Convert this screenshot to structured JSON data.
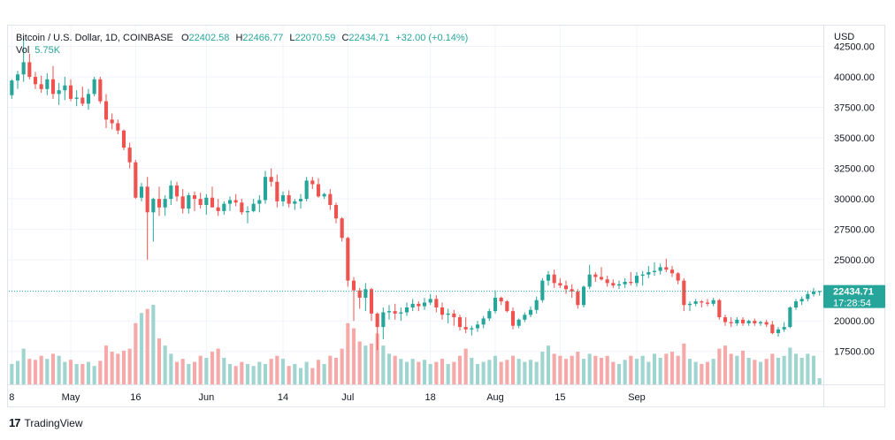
{
  "legend": {
    "symbol": "Bitcoin / U.S. Dollar, 1D, COINBASE",
    "o_label": "O",
    "o_value": "22402.58",
    "h_label": "H",
    "h_value": "22466.77",
    "l_label": "L",
    "l_value": "22070.59",
    "c_label": "C",
    "c_value": "22434.71",
    "change": "+32.00 (+0.14%)",
    "vol_label": "Vol",
    "vol_value": "5.75K"
  },
  "footer": {
    "brand": "TradingView",
    "mark": "17"
  },
  "colors": {
    "up": "#26a69a",
    "down": "#ef5350",
    "up_vol": "#9fd4cf",
    "down_vol": "#f5a9a8",
    "grid": "#f0f3fa",
    "axis_text": "#131722"
  },
  "chart_data": {
    "type": "candlestick",
    "currency": "USD",
    "last_price": "22434.71",
    "countdown": "17:28:54",
    "y_ticks": [
      "42500.00",
      "40000.00",
      "37500.00",
      "35000.00",
      "32500.00",
      "30000.00",
      "27500.00",
      "25000.00",
      "20000.00",
      "17500.00"
    ],
    "y_range": [
      14800,
      44200
    ],
    "x_ticks": [
      {
        "label": "8",
        "index": 0
      },
      {
        "label": "May",
        "index": 10
      },
      {
        "label": "16",
        "index": 21
      },
      {
        "label": "Jun",
        "index": 33
      },
      {
        "label": "14",
        "index": 46
      },
      {
        "label": "Jul",
        "index": 57
      },
      {
        "label": "18",
        "index": 71
      },
      {
        "label": "Aug",
        "index": 82
      },
      {
        "label": "15",
        "index": 93
      },
      {
        "label": "Sep",
        "index": 106
      }
    ],
    "candles": [
      [
        38500,
        39800,
        38200,
        39700,
        20
      ],
      [
        39700,
        40500,
        39000,
        40200,
        23
      ],
      [
        40200,
        43200,
        39600,
        41200,
        35
      ],
      [
        41200,
        41900,
        39800,
        40000,
        25
      ],
      [
        40000,
        40400,
        39000,
        39400,
        24
      ],
      [
        39400,
        40100,
        38700,
        39000,
        28
      ],
      [
        39000,
        40300,
        38500,
        39800,
        25
      ],
      [
        39800,
        40900,
        38200,
        38600,
        30
      ],
      [
        38600,
        39500,
        37700,
        38900,
        28
      ],
      [
        38900,
        40000,
        38100,
        39300,
        22
      ],
      [
        39300,
        39800,
        38000,
        38200,
        24
      ],
      [
        38200,
        38900,
        37600,
        38300,
        20
      ],
      [
        38300,
        39200,
        37600,
        37800,
        20
      ],
      [
        37800,
        39000,
        37300,
        38600,
        22
      ],
      [
        38600,
        40000,
        38400,
        39800,
        18
      ],
      [
        39800,
        40000,
        37800,
        38000,
        23
      ],
      [
        38000,
        38600,
        35800,
        36500,
        38
      ],
      [
        36500,
        37000,
        35700,
        36200,
        32
      ],
      [
        36200,
        36500,
        35300,
        35600,
        30
      ],
      [
        35600,
        35700,
        34000,
        34200,
        33
      ],
      [
        34200,
        34600,
        32500,
        33000,
        35
      ],
      [
        33000,
        33200,
        30000,
        30100,
        60
      ],
      [
        30100,
        31300,
        29800,
        31000,
        70
      ],
      [
        31000,
        31800,
        25000,
        28900,
        74
      ],
      [
        28900,
        30100,
        26500,
        30000,
        78
      ],
      [
        30000,
        31000,
        28600,
        29300,
        45
      ],
      [
        29300,
        30300,
        28600,
        30000,
        38
      ],
      [
        30000,
        31500,
        29500,
        31100,
        30
      ],
      [
        31100,
        31400,
        29800,
        30200,
        22
      ],
      [
        30200,
        30800,
        28800,
        29200,
        25
      ],
      [
        29200,
        30500,
        28800,
        30300,
        20
      ],
      [
        30300,
        30600,
        29000,
        30000,
        22
      ],
      [
        30000,
        30500,
        29200,
        29500,
        28
      ],
      [
        29500,
        30400,
        28700,
        30100,
        26
      ],
      [
        30100,
        31000,
        29400,
        29300,
        32
      ],
      [
        29300,
        30000,
        28600,
        29000,
        35
      ],
      [
        29000,
        29800,
        28700,
        29600,
        26
      ],
      [
        29600,
        30200,
        29000,
        29900,
        20
      ],
      [
        29900,
        30400,
        29400,
        29700,
        18
      ],
      [
        29700,
        30000,
        28700,
        28900,
        22
      ],
      [
        28900,
        29400,
        28000,
        29000,
        20
      ],
      [
        29000,
        30000,
        28900,
        29600,
        18
      ],
      [
        29600,
        30300,
        28900,
        29900,
        22
      ],
      [
        29900,
        32300,
        29600,
        31800,
        20
      ],
      [
        31800,
        32500,
        31000,
        31400,
        25
      ],
      [
        31400,
        32000,
        29300,
        29800,
        28
      ],
      [
        29800,
        30600,
        29400,
        30300,
        25
      ],
      [
        30300,
        30700,
        29300,
        29600,
        18
      ],
      [
        29600,
        30000,
        29100,
        29800,
        20
      ],
      [
        29800,
        30400,
        29200,
        30000,
        16
      ],
      [
        30000,
        31800,
        29800,
        31500,
        22
      ],
      [
        31500,
        31800,
        30800,
        31200,
        16
      ],
      [
        31200,
        31700,
        30100,
        30200,
        24
      ],
      [
        30200,
        30500,
        30000,
        30400,
        20
      ],
      [
        30400,
        30800,
        29100,
        29500,
        28
      ],
      [
        29500,
        29700,
        28000,
        28400,
        26
      ],
      [
        28400,
        28500,
        26500,
        26800,
        35
      ],
      [
        26800,
        26900,
        22800,
        23300,
        60
      ],
      [
        23300,
        23600,
        20000,
        22500,
        55
      ],
      [
        22500,
        22700,
        21000,
        21900,
        42
      ],
      [
        21900,
        23100,
        20800,
        22600,
        38
      ],
      [
        22600,
        22700,
        20000,
        20600,
        40
      ],
      [
        20600,
        20700,
        17600,
        19500,
        50
      ],
      [
        19500,
        21100,
        18500,
        20700,
        38
      ],
      [
        20700,
        21300,
        20100,
        20800,
        30
      ],
      [
        20800,
        21400,
        20100,
        20600,
        28
      ],
      [
        20600,
        21100,
        20000,
        20700,
        25
      ],
      [
        20700,
        21500,
        20400,
        21100,
        22
      ],
      [
        21100,
        21800,
        20800,
        21400,
        25
      ],
      [
        21400,
        21600,
        20800,
        21200,
        22
      ],
      [
        21200,
        21900,
        20900,
        21500,
        24
      ],
      [
        21500,
        22200,
        21300,
        21800,
        20
      ],
      [
        21800,
        22100,
        20700,
        21100,
        22
      ],
      [
        21100,
        21500,
        20100,
        20500,
        25
      ],
      [
        20500,
        21000,
        19800,
        20600,
        20
      ],
      [
        20600,
        20900,
        19600,
        20300,
        22
      ],
      [
        20300,
        20500,
        19200,
        19500,
        28
      ],
      [
        19500,
        20300,
        19000,
        19300,
        35
      ],
      [
        19300,
        19600,
        18800,
        19400,
        26
      ],
      [
        19400,
        20000,
        19100,
        19700,
        20
      ],
      [
        19700,
        20400,
        19400,
        20200,
        22
      ],
      [
        20200,
        21000,
        20000,
        20800,
        24
      ],
      [
        20800,
        22500,
        20600,
        21900,
        28
      ],
      [
        21900,
        22000,
        21300,
        21600,
        22
      ],
      [
        21600,
        21700,
        20700,
        20800,
        24
      ],
      [
        20800,
        21100,
        19300,
        19600,
        28
      ],
      [
        19600,
        20200,
        19400,
        20100,
        25
      ],
      [
        20100,
        20700,
        19900,
        20500,
        22
      ],
      [
        20500,
        21200,
        20300,
        20900,
        24
      ],
      [
        20900,
        22000,
        20600,
        21700,
        22
      ],
      [
        21700,
        23500,
        21500,
        23300,
        32
      ],
      [
        23300,
        24100,
        22900,
        23800,
        38
      ],
      [
        23800,
        24200,
        22700,
        23100,
        30
      ],
      [
        23100,
        23500,
        22700,
        22900,
        28
      ],
      [
        22900,
        23300,
        22200,
        22600,
        25
      ],
      [
        22600,
        23000,
        21900,
        22400,
        28
      ],
      [
        22400,
        22600,
        21000,
        21300,
        32
      ],
      [
        21300,
        22900,
        21100,
        22800,
        25
      ],
      [
        22800,
        24600,
        22600,
        23800,
        30
      ],
      [
        23800,
        24000,
        23200,
        23600,
        28
      ],
      [
        23600,
        24400,
        23300,
        23400,
        26
      ],
      [
        23400,
        23700,
        22800,
        23100,
        28
      ],
      [
        23100,
        23400,
        22700,
        22900,
        22
      ],
      [
        22900,
        23300,
        22600,
        23000,
        20
      ],
      [
        23000,
        23500,
        22700,
        23200,
        24
      ],
      [
        23200,
        24000,
        22900,
        23100,
        28
      ],
      [
        23100,
        24000,
        22800,
        23700,
        25
      ],
      [
        23700,
        24100,
        22900,
        23800,
        28
      ],
      [
        23800,
        24500,
        23500,
        24000,
        22
      ],
      [
        24000,
        24800,
        23700,
        24100,
        30
      ],
      [
        24100,
        24700,
        23800,
        24400,
        26
      ],
      [
        24400,
        25100,
        24000,
        24200,
        30
      ],
      [
        24200,
        24500,
        23600,
        23900,
        32
      ],
      [
        23900,
        24000,
        23000,
        23300,
        28
      ],
      [
        23300,
        23500,
        20800,
        21300,
        40
      ],
      [
        21300,
        21600,
        20800,
        21400,
        25
      ],
      [
        21400,
        21800,
        21200,
        21600,
        22
      ],
      [
        21600,
        21700,
        21100,
        21500,
        20
      ],
      [
        21500,
        21800,
        21200,
        21400,
        22
      ],
      [
        21400,
        21900,
        21200,
        21700,
        25
      ],
      [
        21700,
        21800,
        20100,
        20300,
        35
      ],
      [
        20300,
        20500,
        19600,
        19900,
        38
      ],
      [
        19900,
        20300,
        19500,
        19800,
        30
      ],
      [
        19800,
        20300,
        19600,
        20100,
        28
      ],
      [
        20100,
        20300,
        19600,
        19800,
        33
      ],
      [
        19800,
        20100,
        19600,
        20000,
        26
      ],
      [
        20000,
        20200,
        19600,
        19800,
        24
      ],
      [
        19800,
        20000,
        19600,
        19900,
        22
      ],
      [
        19900,
        20100,
        19500,
        19700,
        25
      ],
      [
        19700,
        20000,
        18900,
        19000,
        30
      ],
      [
        19000,
        19500,
        18700,
        19300,
        26
      ],
      [
        19300,
        19900,
        19100,
        19500,
        28
      ],
      [
        19500,
        21200,
        19400,
        21100,
        36
      ],
      [
        21100,
        21800,
        20900,
        21600,
        30
      ],
      [
        21600,
        22000,
        21300,
        21800,
        26
      ],
      [
        21800,
        22400,
        21600,
        22200,
        30
      ],
      [
        22200,
        22700,
        22000,
        22400,
        28
      ],
      [
        22402.58,
        22466.77,
        22070.59,
        22434.71,
        6
      ]
    ]
  }
}
